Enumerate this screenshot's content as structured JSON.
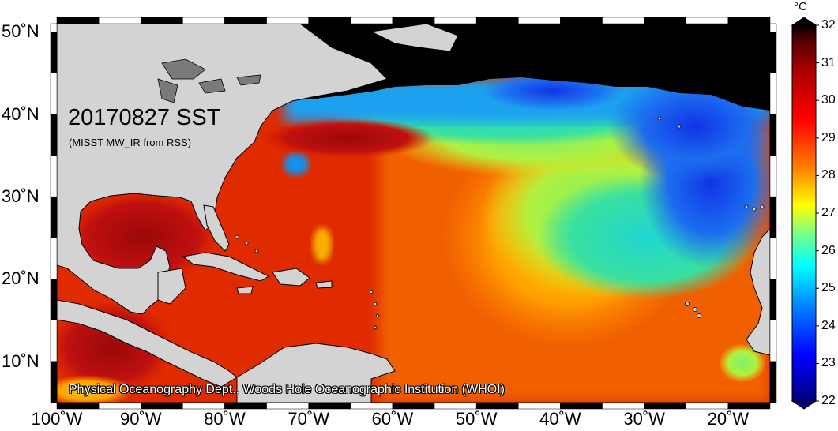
{
  "map": {
    "date_title": "20170827 SST",
    "source_subtitle": "(MISST MW_IR from RSS)",
    "credit": "Physical Oceanography Dept., Woods Hole Oceanographic Institution (WHOI)",
    "x_ticks": [
      "100˚W",
      "90˚W",
      "80˚W",
      "70˚W",
      "60˚W",
      "50˚W",
      "40˚W",
      "30˚W",
      "20˚W"
    ],
    "y_ticks": [
      "50˚N",
      "40˚N",
      "30˚N",
      "20˚N",
      "10˚N"
    ],
    "land_color": "#d3d3d3",
    "ice_color": "#000000"
  },
  "colorbar": {
    "unit": "°C",
    "ticks": [
      "32",
      "31",
      "30",
      "29",
      "28",
      "27",
      "26",
      "25",
      "24",
      "23",
      "22"
    ],
    "min": 22,
    "max": 32,
    "colors": [
      "#00007f",
      "#0000ff",
      "#0080ff",
      "#00ffff",
      "#80ff80",
      "#ffff00",
      "#ff8000",
      "#ff0000",
      "#aa0000",
      "#550000",
      "#000000"
    ]
  }
}
